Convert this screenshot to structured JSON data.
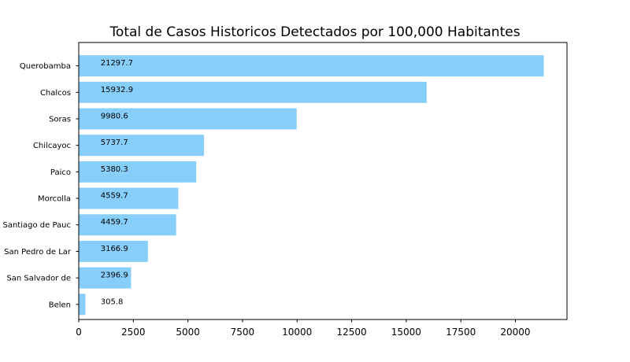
{
  "chart_data": {
    "type": "bar",
    "orientation": "horizontal",
    "title": "Total de Casos Historicos Detectados por 100,000 Habitantes",
    "xlabel": "",
    "ylabel": "",
    "categories": [
      "Querobamba",
      "Chalcos",
      "Soras",
      "Chilcayoc",
      "Paico",
      "Morcolla",
      "Santiago de Pauc",
      "San Pedro de Lar",
      "San Salvador de ",
      "Belen"
    ],
    "values": [
      21297.7,
      15932.9,
      9980.6,
      5737.7,
      5380.3,
      4559.7,
      4459.7,
      3166.9,
      2396.9,
      305.8
    ],
    "data_labels": [
      "21297.7",
      "15932.9",
      "9980.6",
      "5737.7",
      "5380.3",
      "4559.7",
      "4459.7",
      "3166.9",
      "2396.9",
      "305.8"
    ],
    "xlim": [
      0,
      22363
    ],
    "xticks": [
      0,
      2500,
      5000,
      7500,
      10000,
      12500,
      15000,
      17500,
      20000
    ],
    "xtick_labels": [
      "0",
      "2500",
      "5000",
      "7500",
      "10000",
      "12500",
      "15000",
      "17500",
      "20000"
    ],
    "bar_color": "#87cefa",
    "grid": false,
    "label_x_position": 1000
  }
}
